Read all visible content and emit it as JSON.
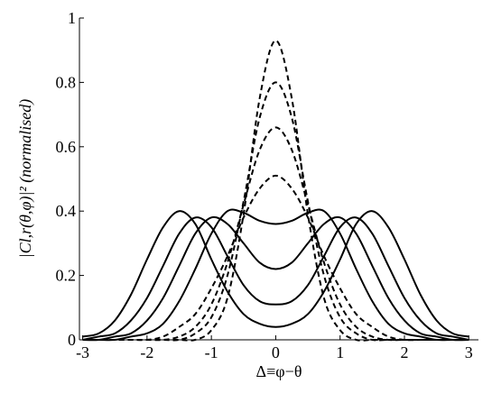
{
  "chart_data": {
    "type": "line",
    "x_label": "Δ≡φ−θ",
    "y_label": "|Cl,r(θ,φ)|² (normalised)",
    "x": [
      -3,
      -2.75,
      -2.5,
      -2.25,
      -2,
      -1.75,
      -1.5,
      -1.25,
      -1,
      -0.75,
      -0.5,
      -0.25,
      0,
      0.25,
      0.5,
      0.75,
      1,
      1.25,
      1.5,
      1.75,
      2,
      2.25,
      2.5,
      2.75,
      3
    ],
    "series": [
      {
        "color": "#000000",
        "dash": true,
        "values": [
          0,
          0,
          0,
          0,
          0,
          0,
          0,
          0,
          0.03,
          0.13,
          0.39,
          0.75,
          0.93,
          0.75,
          0.39,
          0.13,
          0.03,
          0,
          0,
          0,
          0,
          0,
          0,
          0,
          0
        ]
      },
      {
        "color": "#000000",
        "dash": true,
        "values": [
          0,
          0,
          0,
          0,
          0,
          0,
          0,
          0.02,
          0.07,
          0.2,
          0.43,
          0.69,
          0.8,
          0.69,
          0.43,
          0.2,
          0.07,
          0.02,
          0,
          0,
          0,
          0,
          0,
          0,
          0
        ]
      },
      {
        "color": "#000000",
        "dash": true,
        "values": [
          0,
          0,
          0,
          0,
          0,
          0,
          0.01,
          0.04,
          0.11,
          0.24,
          0.42,
          0.59,
          0.66,
          0.59,
          0.42,
          0.24,
          0.11,
          0.04,
          0.01,
          0,
          0,
          0,
          0,
          0,
          0
        ]
      },
      {
        "color": "#000000",
        "dash": true,
        "values": [
          0,
          0,
          0,
          0,
          0,
          0.01,
          0.04,
          0.08,
          0.16,
          0.26,
          0.38,
          0.47,
          0.51,
          0.47,
          0.38,
          0.26,
          0.16,
          0.08,
          0.04,
          0.01,
          0,
          0,
          0,
          0,
          0
        ]
      },
      {
        "color": "#000000",
        "dash": false,
        "values": [
          0,
          0,
          0,
          0.01,
          0.02,
          0.05,
          0.12,
          0.22,
          0.33,
          0.4,
          0.395,
          0.37,
          0.36,
          0.37,
          0.395,
          0.4,
          0.33,
          0.22,
          0.12,
          0.05,
          0.02,
          0.01,
          0,
          0,
          0
        ]
      },
      {
        "color": "#000000",
        "dash": false,
        "values": [
          0,
          0,
          0.01,
          0.02,
          0.06,
          0.13,
          0.23,
          0.33,
          0.38,
          0.36,
          0.3,
          0.24,
          0.22,
          0.24,
          0.3,
          0.36,
          0.38,
          0.33,
          0.23,
          0.13,
          0.06,
          0.02,
          0.01,
          0,
          0
        ]
      },
      {
        "color": "#000000",
        "dash": false,
        "values": [
          0,
          0.01,
          0.02,
          0.06,
          0.13,
          0.23,
          0.33,
          0.38,
          0.35,
          0.26,
          0.17,
          0.12,
          0.11,
          0.12,
          0.17,
          0.26,
          0.35,
          0.38,
          0.33,
          0.23,
          0.13,
          0.06,
          0.02,
          0.01,
          0
        ]
      },
      {
        "color": "#000000",
        "dash": false,
        "values": [
          0.01,
          0.02,
          0.06,
          0.14,
          0.25,
          0.35,
          0.4,
          0.36,
          0.25,
          0.15,
          0.08,
          0.05,
          0.04,
          0.05,
          0.08,
          0.15,
          0.25,
          0.36,
          0.4,
          0.35,
          0.25,
          0.14,
          0.06,
          0.02,
          0.01
        ]
      }
    ],
    "xlim": [
      -3.05,
      3.15
    ],
    "ylim": [
      0,
      1
    ],
    "xticks": [
      -3,
      -2,
      -1,
      0,
      1,
      2,
      3
    ],
    "yticks": [
      0,
      0.2,
      0.4,
      0.6,
      0.8,
      1
    ],
    "grid": false
  }
}
